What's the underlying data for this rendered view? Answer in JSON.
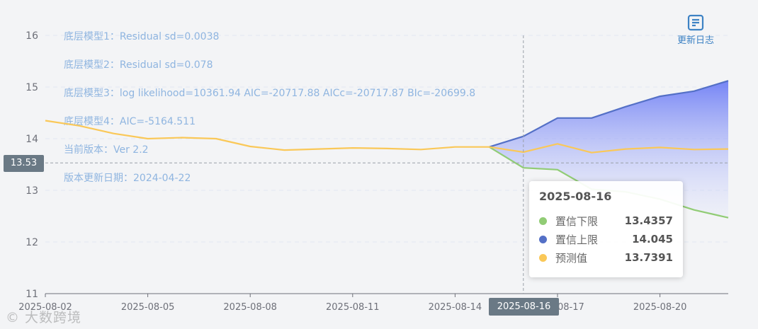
{
  "info_lines": [
    "底层模型1：Residual sd=0.0038",
    "底层模型2：Residual sd=0.078",
    "底层模型3：log likelihood=10361.94 AIC=-20717.88 AICc=-20717.87 BIc=-20699.8",
    "底层模型4：AIC=-5164.511",
    "当前版本：Ver 2.2",
    "版本更新日期：2024-04-22"
  ],
  "toolbar": {
    "update_log_label": "更新日志",
    "update_log_icon": "document-icon"
  },
  "crosshair": {
    "y_value": "13.53",
    "x_value": "2025-08-16"
  },
  "tooltip": {
    "title": "2025-08-16",
    "rows": [
      {
        "name": "置信下限",
        "value": "13.4357",
        "color": "#91cc75"
      },
      {
        "name": "置信上限",
        "value": "14.045",
        "color": "#5470c6"
      },
      {
        "name": "预测值",
        "value": "13.7391",
        "color": "#fac858"
      }
    ]
  },
  "watermark": "大数跨境",
  "chart_data": {
    "type": "line",
    "x": [
      "2025-08-02",
      "2025-08-03",
      "2025-08-04",
      "2025-08-05",
      "2025-08-06",
      "2025-08-07",
      "2025-08-08",
      "2025-08-09",
      "2025-08-10",
      "2025-08-11",
      "2025-08-12",
      "2025-08-13",
      "2025-08-14",
      "2025-08-15",
      "2025-08-16",
      "2025-08-17",
      "2025-08-18",
      "2025-08-19",
      "2025-08-20",
      "2025-08-21",
      "2025-08-22"
    ],
    "x_tick_labels": [
      "2025-08-02",
      "2025-08-05",
      "2025-08-08",
      "2025-08-11",
      "2025-08-14",
      "2025-08-17",
      "2025-08-20"
    ],
    "ylim": [
      11,
      16
    ],
    "y_ticks": [
      11,
      12,
      13,
      14,
      15,
      16
    ],
    "series": [
      {
        "name": "预测值",
        "color": "#fac858",
        "values": [
          14.35,
          14.25,
          14.1,
          14.0,
          14.02,
          14.0,
          13.85,
          13.78,
          13.8,
          13.82,
          13.81,
          13.79,
          13.84,
          13.84,
          13.7391,
          13.9,
          13.73,
          13.8,
          13.83,
          13.79,
          13.8
        ]
      },
      {
        "name": "置信上限",
        "color": "#5470c6",
        "values": [
          null,
          null,
          null,
          null,
          null,
          null,
          null,
          null,
          null,
          null,
          null,
          null,
          null,
          13.84,
          14.045,
          14.4,
          14.4,
          14.62,
          14.82,
          14.92,
          15.12
        ]
      },
      {
        "name": "置信下限",
        "color": "#91cc75",
        "values": [
          null,
          null,
          null,
          null,
          null,
          null,
          null,
          null,
          null,
          null,
          null,
          null,
          null,
          13.84,
          13.4357,
          13.4,
          13.02,
          12.97,
          12.83,
          12.62,
          12.47
        ]
      }
    ],
    "grid": true,
    "band_fill": "#5470c6"
  }
}
